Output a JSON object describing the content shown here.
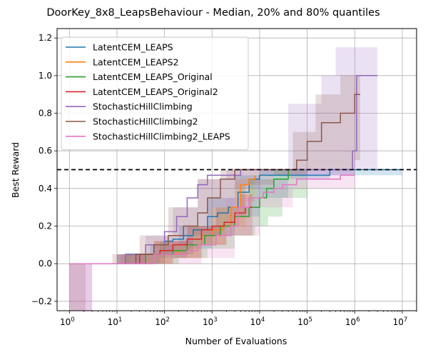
{
  "chart_data": {
    "type": "line",
    "title": "DoorKey_8x8_LeapsBehaviour - Median, 20% and 80% quantiles",
    "xlabel": "Number of Evaluations",
    "ylabel": "Best Reward",
    "x_scale": "log",
    "xlim": [
      0.55,
      20000000
    ],
    "ylim": [
      -0.25,
      1.25
    ],
    "x_ticks": [
      {
        "value": 1,
        "base": "10",
        "exp": "0"
      },
      {
        "value": 10,
        "base": "10",
        "exp": "1"
      },
      {
        "value": 100,
        "base": "10",
        "exp": "2"
      },
      {
        "value": 1000,
        "base": "10",
        "exp": "3"
      },
      {
        "value": 10000,
        "base": "10",
        "exp": "4"
      },
      {
        "value": 100000,
        "base": "10",
        "exp": "5"
      },
      {
        "value": 1000000,
        "base": "10",
        "exp": "6"
      },
      {
        "value": 10000000,
        "base": "10",
        "exp": "7"
      }
    ],
    "y_ticks": [
      {
        "value": -0.2,
        "label": "−0.2"
      },
      {
        "value": 0.0,
        "label": "0.0"
      },
      {
        "value": 0.2,
        "label": "0.2"
      },
      {
        "value": 0.4,
        "label": "0.4"
      },
      {
        "value": 0.6,
        "label": "0.6"
      },
      {
        "value": 0.8,
        "label": "0.8"
      },
      {
        "value": 1.0,
        "label": "1.0"
      },
      {
        "value": 1.2,
        "label": "1.2"
      }
    ],
    "grid": true,
    "legend_position": "top-left",
    "reference_line": {
      "y": 0.5,
      "style": "dashed",
      "color": "#000000"
    },
    "series": [
      {
        "name": "LatentCEM_LEAPS",
        "color": "#1f77b4",
        "points": [
          [
            1,
            0
          ],
          [
            12,
            0
          ],
          [
            15,
            0.05
          ],
          [
            30,
            0.05
          ],
          [
            60,
            0.1
          ],
          [
            100,
            0.12
          ],
          [
            150,
            0.13
          ],
          [
            250,
            0.15
          ],
          [
            400,
            0.18
          ],
          [
            800,
            0.25
          ],
          [
            1300,
            0.27
          ],
          [
            2200,
            0.3
          ],
          [
            3500,
            0.38
          ],
          [
            6000,
            0.45
          ],
          [
            10000,
            0.47
          ],
          [
            40000,
            0.47
          ],
          [
            200000,
            0.47
          ],
          [
            300000,
            0.5
          ],
          [
            10000000,
            0.5
          ]
        ],
        "lower": [
          [
            1,
            0
          ],
          [
            20,
            0
          ],
          [
            80,
            0.03
          ],
          [
            300,
            0.08
          ],
          [
            1000,
            0.15
          ],
          [
            3000,
            0.25
          ],
          [
            10000,
            0.35
          ],
          [
            40000,
            0.45
          ],
          [
            300000,
            0.47
          ],
          [
            10000000,
            0.5
          ]
        ],
        "upper": [
          [
            1,
            0
          ],
          [
            10,
            0.05
          ],
          [
            50,
            0.1
          ],
          [
            200,
            0.2
          ],
          [
            800,
            0.35
          ],
          [
            3000,
            0.47
          ],
          [
            10000,
            0.5
          ],
          [
            10000000,
            0.5
          ]
        ]
      },
      {
        "name": "LatentCEM_LEAPS2",
        "color": "#ff7f0e",
        "points": [
          [
            1,
            0
          ],
          [
            15,
            0
          ],
          [
            40,
            0.05
          ],
          [
            100,
            0.05
          ],
          [
            200,
            0.07
          ],
          [
            300,
            0.1
          ],
          [
            600,
            0.15
          ],
          [
            1000,
            0.18
          ],
          [
            1700,
            0.2
          ],
          [
            2500,
            0.3
          ],
          [
            4000,
            0.42
          ],
          [
            6000,
            0.45
          ],
          [
            8000,
            0.47
          ]
        ],
        "lower": [
          [
            1,
            0
          ],
          [
            30,
            0
          ],
          [
            150,
            0.03
          ],
          [
            600,
            0.1
          ],
          [
            2000,
            0.2
          ],
          [
            5000,
            0.33
          ],
          [
            8000,
            0.4
          ]
        ],
        "upper": [
          [
            1,
            0
          ],
          [
            12,
            0.05
          ],
          [
            60,
            0.12
          ],
          [
            300,
            0.2
          ],
          [
            1000,
            0.3
          ],
          [
            3000,
            0.45
          ],
          [
            8000,
            0.5
          ]
        ]
      },
      {
        "name": "LatentCEM_LEAPS_Original",
        "color": "#2ca02c",
        "points": [
          [
            1,
            0
          ],
          [
            20,
            0
          ],
          [
            40,
            0.05
          ],
          [
            150,
            0.07
          ],
          [
            300,
            0.1
          ],
          [
            700,
            0.15
          ],
          [
            1500,
            0.2
          ],
          [
            3000,
            0.25
          ],
          [
            6000,
            0.3
          ],
          [
            10000,
            0.35
          ],
          [
            14000,
            0.4
          ],
          [
            20000,
            0.45
          ],
          [
            40000,
            0.5
          ],
          [
            100000,
            0.5
          ]
        ],
        "lower": [
          [
            1,
            0
          ],
          [
            40,
            0
          ],
          [
            200,
            0.03
          ],
          [
            800,
            0.08
          ],
          [
            3000,
            0.15
          ],
          [
            8000,
            0.2
          ],
          [
            15000,
            0.25
          ],
          [
            30000,
            0.35
          ],
          [
            100000,
            0.45
          ]
        ],
        "upper": [
          [
            1,
            0
          ],
          [
            15,
            0.05
          ],
          [
            80,
            0.12
          ],
          [
            400,
            0.2
          ],
          [
            1500,
            0.3
          ],
          [
            6000,
            0.45
          ],
          [
            20000,
            0.5
          ],
          [
            100000,
            0.5
          ]
        ]
      },
      {
        "name": "LatentCEM_LEAPS_Original2",
        "color": "#d62728",
        "points": [
          [
            1,
            0
          ],
          [
            15,
            0
          ],
          [
            30,
            0.05
          ],
          [
            80,
            0.07
          ],
          [
            150,
            0.1
          ],
          [
            300,
            0.13
          ],
          [
            600,
            0.18
          ],
          [
            1000,
            0.2
          ],
          [
            1800,
            0.22
          ],
          [
            3000,
            0.27
          ],
          [
            5000,
            0.3
          ],
          [
            7000,
            0.3
          ]
        ],
        "lower": [
          [
            1,
            0
          ],
          [
            30,
            0
          ],
          [
            150,
            0.03
          ],
          [
            600,
            0.1
          ],
          [
            2000,
            0.15
          ],
          [
            7000,
            0.2
          ]
        ],
        "upper": [
          [
            1,
            0
          ],
          [
            10,
            0.05
          ],
          [
            60,
            0.12
          ],
          [
            300,
            0.2
          ],
          [
            1200,
            0.3
          ],
          [
            4000,
            0.37
          ],
          [
            7000,
            0.4
          ]
        ]
      },
      {
        "name": "StochasticHillClimbing",
        "color": "#9467bd",
        "points": [
          [
            1,
            0
          ],
          [
            12,
            0
          ],
          [
            15,
            0.05
          ],
          [
            40,
            0.1
          ],
          [
            100,
            0.17
          ],
          [
            180,
            0.25
          ],
          [
            300,
            0.35
          ],
          [
            500,
            0.42
          ],
          [
            800,
            0.47
          ],
          [
            2000,
            0.47
          ],
          [
            4000,
            0.5
          ],
          [
            100000,
            0.5
          ],
          [
            700000,
            0.5
          ],
          [
            900000,
            0.6
          ],
          [
            1100000,
            1.0
          ],
          [
            3000000,
            1.0
          ]
        ],
        "lower": [
          [
            1,
            -0.25
          ],
          [
            2,
            -0.25
          ],
          [
            3,
            0
          ],
          [
            15,
            0
          ],
          [
            40,
            0.05
          ],
          [
            150,
            0.1
          ],
          [
            400,
            0.2
          ],
          [
            1000,
            0.3
          ],
          [
            3000,
            0.4
          ],
          [
            10000,
            0.47
          ],
          [
            100000,
            0.47
          ],
          [
            1000000,
            0.5
          ],
          [
            3000000,
            0.5
          ]
        ],
        "upper": [
          [
            1,
            0
          ],
          [
            10,
            0.05
          ],
          [
            40,
            0.15
          ],
          [
            150,
            0.3
          ],
          [
            500,
            0.45
          ],
          [
            2000,
            0.5
          ],
          [
            20000,
            0.5
          ],
          [
            40000,
            0.85
          ],
          [
            200000,
            1.0
          ],
          [
            400000,
            1.15
          ],
          [
            1000000,
            1.15
          ],
          [
            3000000,
            1.0
          ]
        ]
      },
      {
        "name": "StochasticHillClimbing2",
        "color": "#8c564b",
        "points": [
          [
            1,
            0
          ],
          [
            15,
            0
          ],
          [
            25,
            0.05
          ],
          [
            60,
            0.1
          ],
          [
            120,
            0.15
          ],
          [
            250,
            0.2
          ],
          [
            500,
            0.27
          ],
          [
            800,
            0.35
          ],
          [
            1500,
            0.45
          ],
          [
            3000,
            0.5
          ],
          [
            40000,
            0.5
          ],
          [
            60000,
            0.55
          ],
          [
            100000,
            0.65
          ],
          [
            200000,
            0.75
          ],
          [
            500000,
            0.8
          ],
          [
            1000000,
            0.9
          ],
          [
            1300000,
            0.9
          ]
        ],
        "lower": [
          [
            1,
            -0.25
          ],
          [
            2,
            -0.25
          ],
          [
            2.2,
            0
          ],
          [
            20,
            0
          ],
          [
            100,
            0.05
          ],
          [
            400,
            0.15
          ],
          [
            1500,
            0.3
          ],
          [
            5000,
            0.42
          ],
          [
            20000,
            0.47
          ],
          [
            100000,
            0.5
          ],
          [
            300000,
            0.5
          ],
          [
            1000000,
            0.55
          ],
          [
            1300000,
            0.6
          ]
        ],
        "upper": [
          [
            1,
            0
          ],
          [
            8,
            0.05
          ],
          [
            30,
            0.15
          ],
          [
            120,
            0.3
          ],
          [
            500,
            0.45
          ],
          [
            1500,
            0.5
          ],
          [
            20000,
            0.5
          ],
          [
            50000,
            0.7
          ],
          [
            150000,
            0.9
          ],
          [
            500000,
            1.0
          ],
          [
            1300000,
            1.0
          ]
        ]
      },
      {
        "name": "StochasticHillClimbing2_LEAPS",
        "color": "#e377c2",
        "points": [
          [
            1,
            0
          ],
          [
            50,
            0
          ],
          [
            60,
            0.05
          ],
          [
            200,
            0.05
          ],
          [
            300,
            0.07
          ],
          [
            500,
            0.1
          ],
          [
            1200,
            0.15
          ],
          [
            2500,
            0.2
          ],
          [
            3500,
            0.3
          ],
          [
            6000,
            0.35
          ],
          [
            12000,
            0.38
          ],
          [
            20000,
            0.4
          ],
          [
            30000,
            0.42
          ],
          [
            60000,
            0.45
          ],
          [
            200000,
            0.45
          ],
          [
            500000,
            0.47
          ],
          [
            1000000,
            0.47
          ]
        ],
        "lower": [
          [
            1,
            -0.25
          ],
          [
            2,
            -0.25
          ],
          [
            3,
            0
          ],
          [
            80,
            0
          ],
          [
            600,
            0.03
          ],
          [
            3000,
            0.15
          ],
          [
            10000,
            0.3
          ],
          [
            50000,
            0.4
          ],
          [
            1000000,
            0.45
          ]
        ],
        "upper": [
          [
            1,
            0
          ],
          [
            20,
            0.05
          ],
          [
            100,
            0.12
          ],
          [
            500,
            0.2
          ],
          [
            2000,
            0.35
          ],
          [
            8000,
            0.45
          ],
          [
            40000,
            0.5
          ],
          [
            1000000,
            0.5
          ]
        ]
      }
    ]
  }
}
